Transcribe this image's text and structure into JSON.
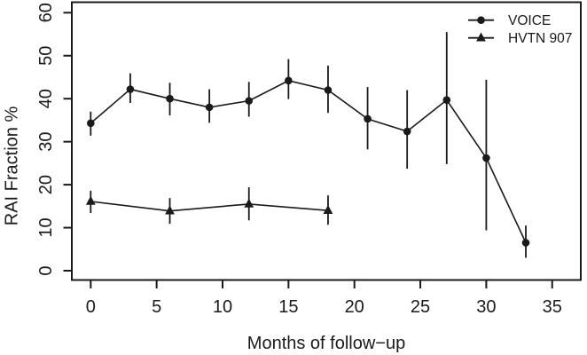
{
  "chart_data": {
    "type": "line",
    "title": "",
    "xlabel": "Months of follow−up",
    "ylabel": "RAI Fraction %",
    "xlim": [
      -1.5,
      36.5
    ],
    "ylim": [
      -2.2,
      62.4
    ],
    "x_ticks": [
      0,
      5,
      10,
      15,
      20,
      25,
      30,
      35
    ],
    "y_ticks": [
      0,
      10,
      20,
      30,
      40,
      50,
      60
    ],
    "grid": false,
    "legend_position": "top-right-inside",
    "axis_color": "#1a1a1a",
    "background_color": "#ffffff",
    "error_bars": true,
    "error_bar_caps": false,
    "series": [
      {
        "name": "VOICE",
        "marker": "circle",
        "color": "#1a1a1a",
        "x": [
          0,
          3,
          6,
          9,
          12,
          15,
          18,
          21,
          24,
          27,
          30,
          33
        ],
        "y": [
          34.3,
          42.2,
          40.0,
          38.0,
          39.5,
          44.2,
          42.0,
          35.3,
          32.4,
          39.7,
          26.2,
          6.5
        ],
        "y_lower": [
          31.4,
          39.0,
          36.1,
          34.4,
          35.8,
          39.9,
          36.7,
          28.2,
          23.7,
          24.8,
          9.4,
          3.0
        ],
        "y_upper": [
          37.0,
          45.9,
          43.7,
          42.2,
          43.9,
          49.2,
          47.7,
          42.7,
          42.0,
          55.5,
          44.4,
          10.5
        ]
      },
      {
        "name": "HVTN 907",
        "marker": "triangle",
        "color": "#1a1a1a",
        "x": [
          0,
          6,
          12,
          18
        ],
        "y": [
          16.1,
          13.9,
          15.5,
          14.0
        ],
        "y_lower": [
          13.4,
          10.9,
          11.7,
          10.7
        ],
        "y_upper": [
          18.6,
          16.9,
          19.4,
          17.5
        ]
      }
    ]
  }
}
